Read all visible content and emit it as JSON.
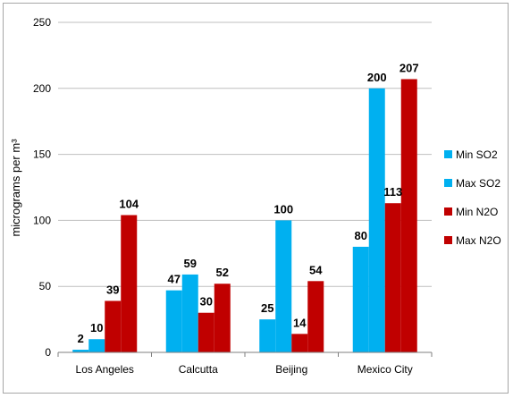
{
  "chart_data": {
    "type": "bar",
    "title": "",
    "xlabel": "",
    "ylabel": "micrograms per m³",
    "ylim": [
      0,
      250
    ],
    "yticks": [
      0,
      50,
      100,
      150,
      200,
      250
    ],
    "grid": true,
    "legend_position": "right",
    "categories": [
      "Los Angeles",
      "Calcutta",
      "Beijing",
      "Mexico City"
    ],
    "series": [
      {
        "name": "Min SO2",
        "color": "#00b0f0",
        "values": [
          2,
          47,
          25,
          80
        ]
      },
      {
        "name": "Max SO2",
        "color": "#00b0f0",
        "values": [
          10,
          59,
          100,
          200
        ]
      },
      {
        "name": "Min N2O",
        "color": "#c00000",
        "values": [
          39,
          30,
          14,
          113
        ]
      },
      {
        "name": "Max N2O",
        "color": "#c00000",
        "values": [
          104,
          52,
          54,
          207
        ]
      }
    ]
  }
}
